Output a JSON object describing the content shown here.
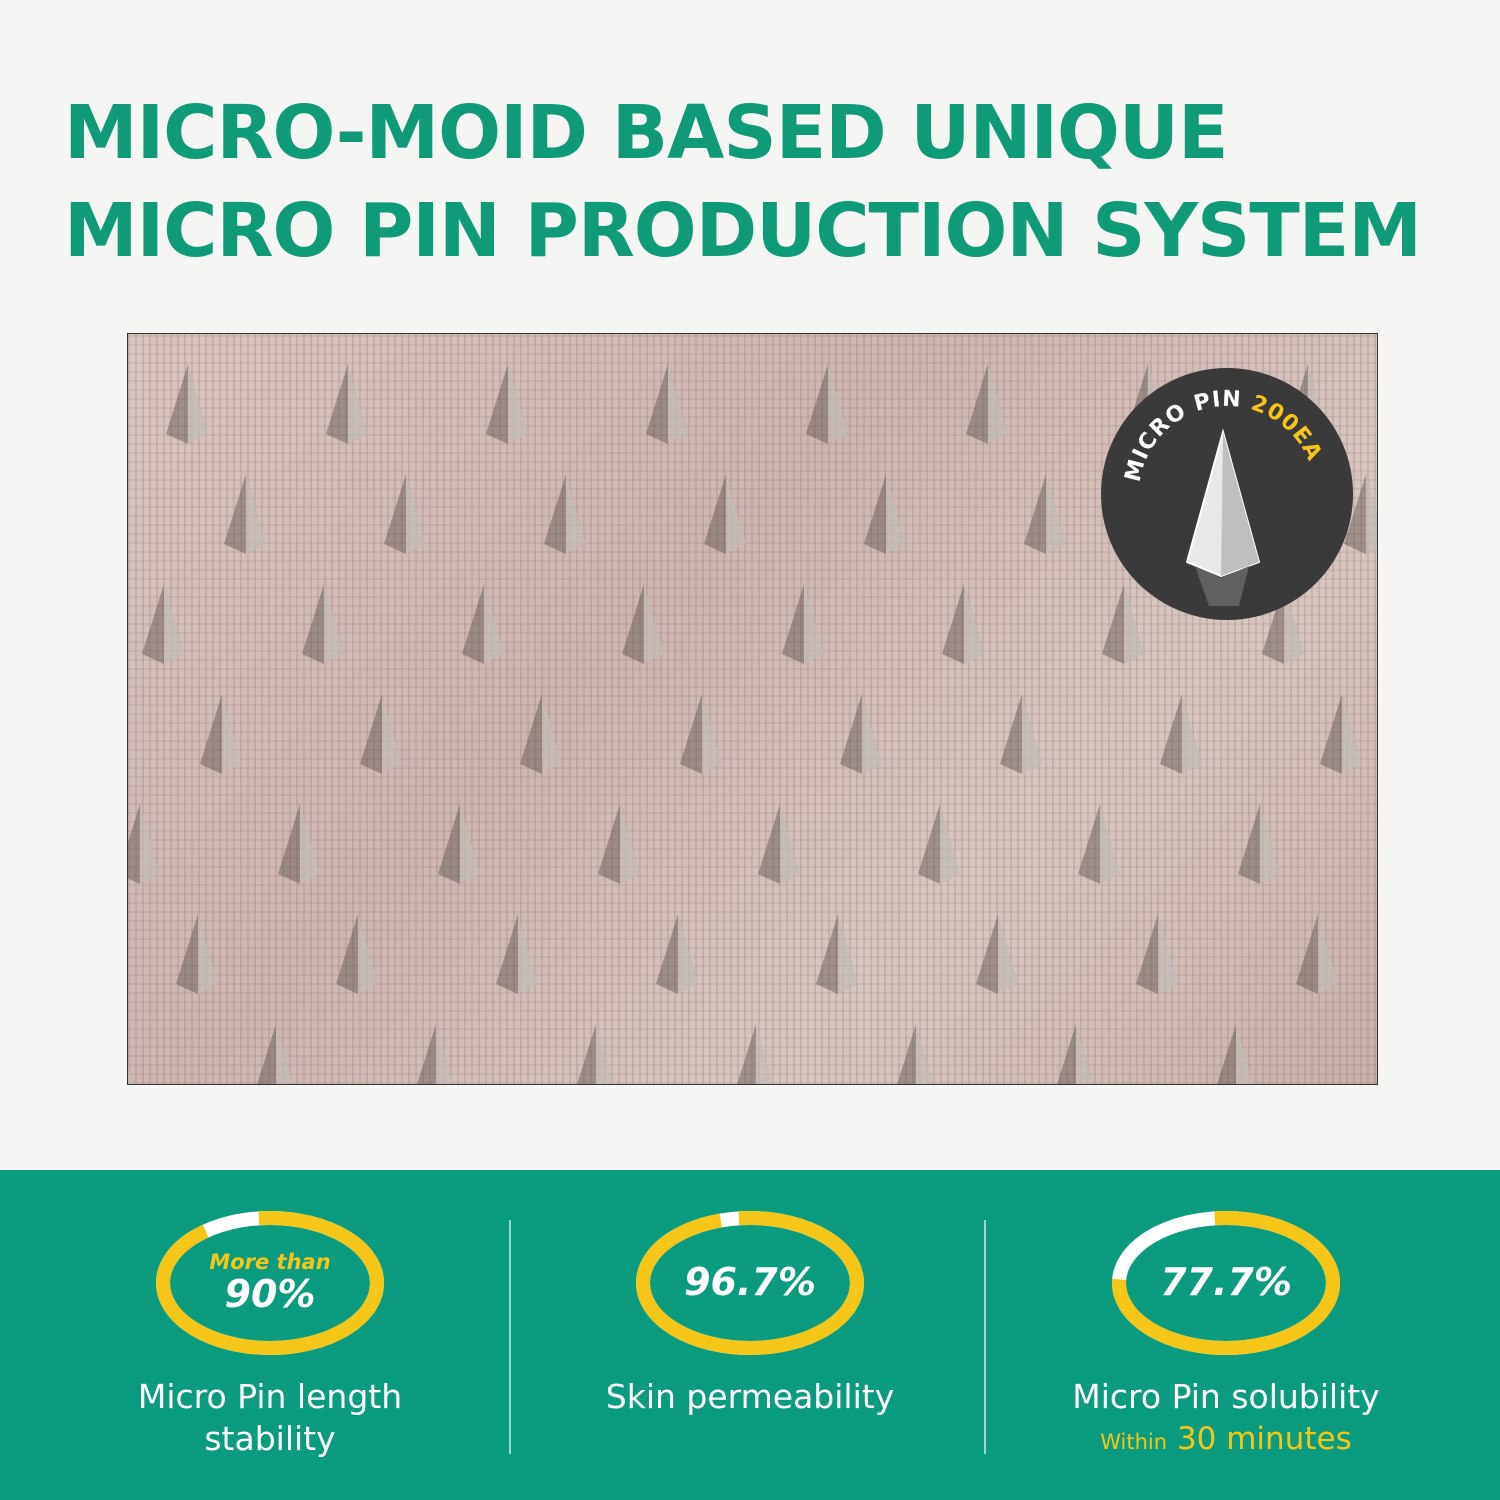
{
  "title": {
    "line1": "MICRO-MOID BASED UNIQUE",
    "line2": "MICRO PIN PRODUCTION SYSTEM"
  },
  "badge": {
    "text_white": "MICRO PIN",
    "text_yellow": "200EA"
  },
  "colors": {
    "title": "#0f9a78",
    "band": "#0b9b7f",
    "ring": "#f5c518",
    "badge": "#3a3a3a"
  },
  "stats": [
    {
      "prefix": "More than",
      "value": "90%",
      "fill_percent": 90,
      "label_line1": "Micro Pin length",
      "label_line2": "stability"
    },
    {
      "value": "96.7%",
      "fill_percent": 96.7,
      "label_line1": "Skin permeability"
    },
    {
      "value": "77.7%",
      "fill_percent": 77.7,
      "label_line1": "Micro Pin solubility",
      "sub_small": "Within",
      "sub_big": "30 minutes"
    }
  ]
}
